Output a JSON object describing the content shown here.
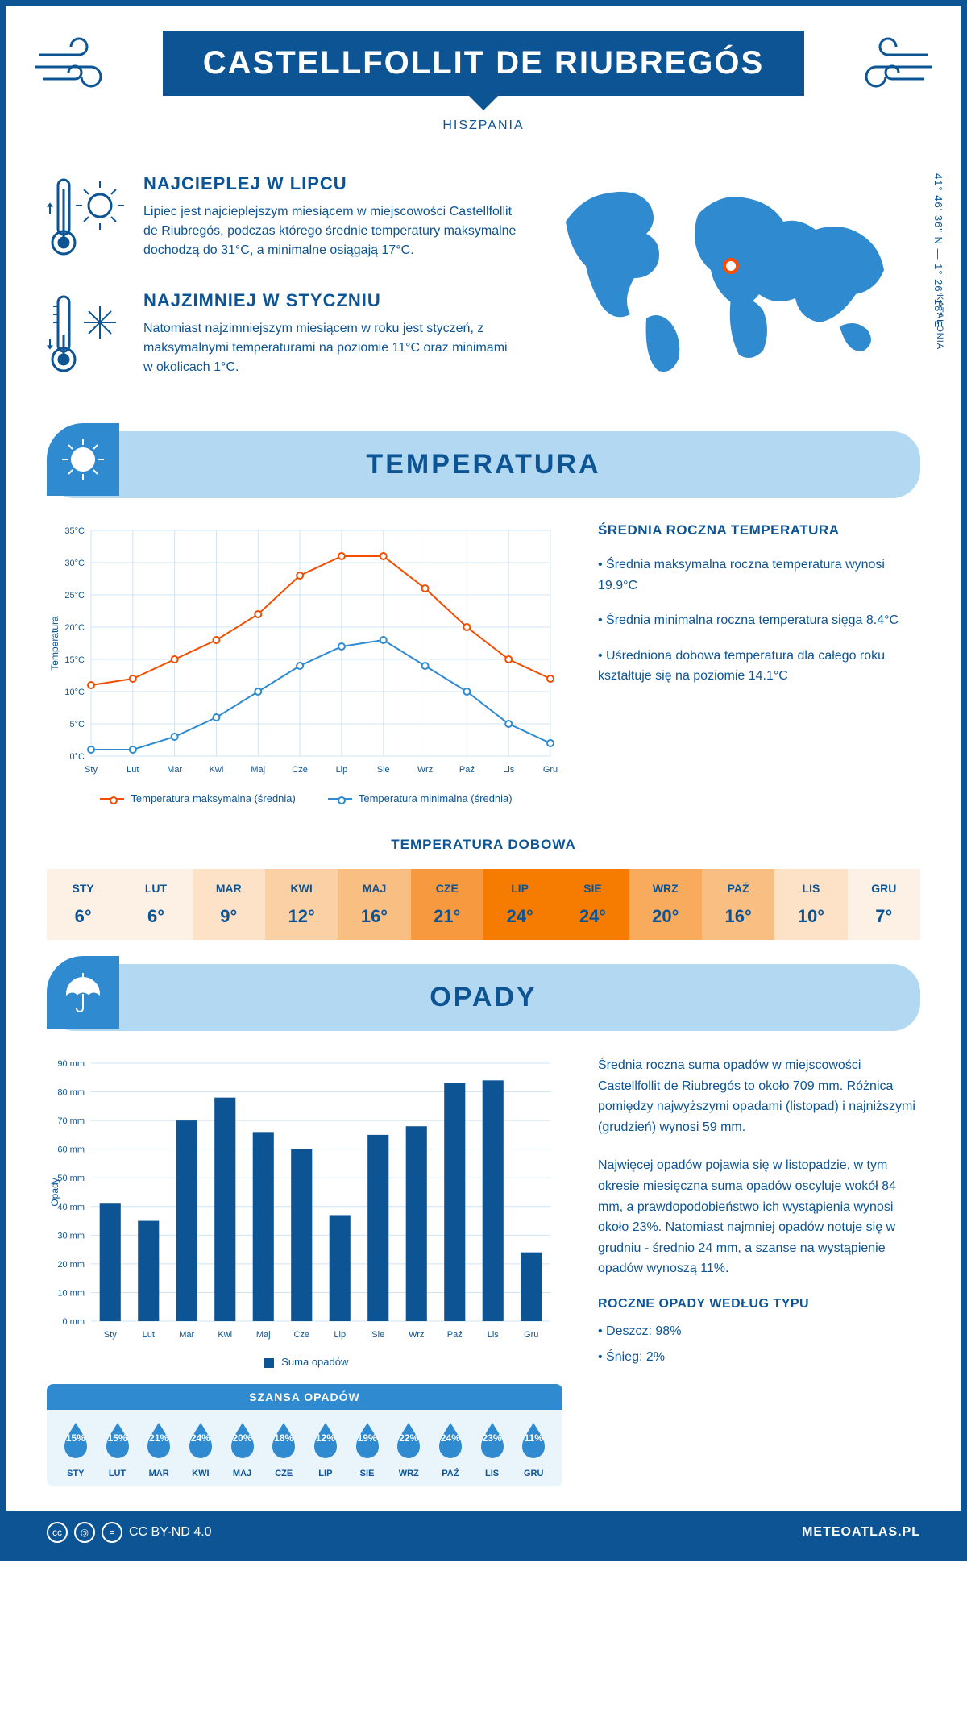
{
  "header": {
    "title": "CASTELLFOLLIT DE RIUBREGÓS",
    "country": "HISZPANIA",
    "region": "KATALONIA",
    "coords": "41° 46' 36\" N — 1° 26' 18\" E"
  },
  "summary": {
    "hot": {
      "title": "NAJCIEPLEJ W LIPCU",
      "text": "Lipiec jest najcieplejszym miesiącem w miejscowości Castellfollit de Riubregós, podczas którego średnie temperatury maksymalne dochodzą do 31°C, a minimalne osiągają 17°C."
    },
    "cold": {
      "title": "NAJZIMNIEJ W STYCZNIU",
      "text": "Natomiast najzimniejszym miesiącem w roku jest styczeń, z maksymalnymi temperaturami na poziomie 11°C oraz minimami w okolicach 1°C."
    }
  },
  "months": [
    "Sty",
    "Lut",
    "Mar",
    "Kwi",
    "Maj",
    "Cze",
    "Lip",
    "Sie",
    "Wrz",
    "Paź",
    "Lis",
    "Gru"
  ],
  "months_upper": [
    "STY",
    "LUT",
    "MAR",
    "KWI",
    "MAJ",
    "CZE",
    "LIP",
    "SIE",
    "WRZ",
    "PAŹ",
    "LIS",
    "GRU"
  ],
  "temperature": {
    "section_title": "TEMPERATURA",
    "ylabel": "Temperatura",
    "ylim": [
      0,
      35
    ],
    "ytick_step": 5,
    "ytick_suffix": "°C",
    "max_series": {
      "label": "Temperatura maksymalna (średnia)",
      "color": "#f24d00",
      "values": [
        11,
        12,
        15,
        18,
        22,
        28,
        31,
        31,
        26,
        20,
        15,
        12
      ]
    },
    "min_series": {
      "label": "Temperatura minimalna (średnia)",
      "color": "#2f8ad0",
      "values": [
        1,
        1,
        3,
        6,
        10,
        14,
        17,
        18,
        14,
        10,
        5,
        2
      ]
    },
    "info_title": "ŚREDNIA ROCZNA TEMPERATURA",
    "info_bullets": [
      "• Średnia maksymalna roczna temperatura wynosi 19.9°C",
      "• Średnia minimalna roczna temperatura sięga 8.4°C",
      "• Uśredniona dobowa temperatura dla całego roku kształtuje się na poziomie 14.1°C"
    ],
    "daily": {
      "title": "TEMPERATURA DOBOWA",
      "values": [
        "6°",
        "6°",
        "9°",
        "12°",
        "16°",
        "21°",
        "24°",
        "24°",
        "20°",
        "16°",
        "10°",
        "7°"
      ],
      "colors": [
        "#fdf1e5",
        "#fdf1e5",
        "#fde2c8",
        "#fbd0a4",
        "#f9be82",
        "#f79a3f",
        "#f57c00",
        "#f57c00",
        "#f8ab5d",
        "#f9be82",
        "#fde2c8",
        "#fdf1e5"
      ]
    }
  },
  "precip": {
    "section_title": "OPADY",
    "ylabel": "Opady",
    "ylim": [
      0,
      90
    ],
    "ytick_step": 10,
    "ytick_suffix": " mm",
    "bar_color": "#0d5494",
    "values": [
      41,
      35,
      70,
      78,
      66,
      60,
      37,
      65,
      68,
      83,
      84,
      24
    ],
    "legend": "Suma opadów",
    "text1": "Średnia roczna suma opadów w miejscowości Castellfollit de Riubregós to około 709 mm. Różnica pomiędzy najwyższymi opadami (listopad) i najniższymi (grudzień) wynosi 59 mm.",
    "text2": "Najwięcej opadów pojawia się w listopadzie, w tym okresie miesięczna suma opadów oscyluje wokół 84 mm, a prawdopodobieństwo ich wystąpienia wynosi około 23%. Natomiast najmniej opadów notuje się w grudniu - średnio 24 mm, a szanse na wystąpienie opadów wynoszą 11%.",
    "type_title": "ROCZNE OPADY WEDŁUG TYPU",
    "types": [
      "• Deszcz: 98%",
      "• Śnieg: 2%"
    ],
    "chance": {
      "title": "SZANSA OPADÓW",
      "values": [
        "15%",
        "15%",
        "21%",
        "24%",
        "20%",
        "18%",
        "12%",
        "19%",
        "22%",
        "24%",
        "23%",
        "11%"
      ]
    }
  },
  "footer": {
    "license": "CC BY-ND 4.0",
    "site": "METEOATLAS.PL"
  },
  "colors": {
    "primary": "#0d5494",
    "light_blue": "#b3d9f2",
    "mid_blue": "#2f8ad0",
    "grid": "#cfe4f5",
    "bg": "#ffffff"
  }
}
